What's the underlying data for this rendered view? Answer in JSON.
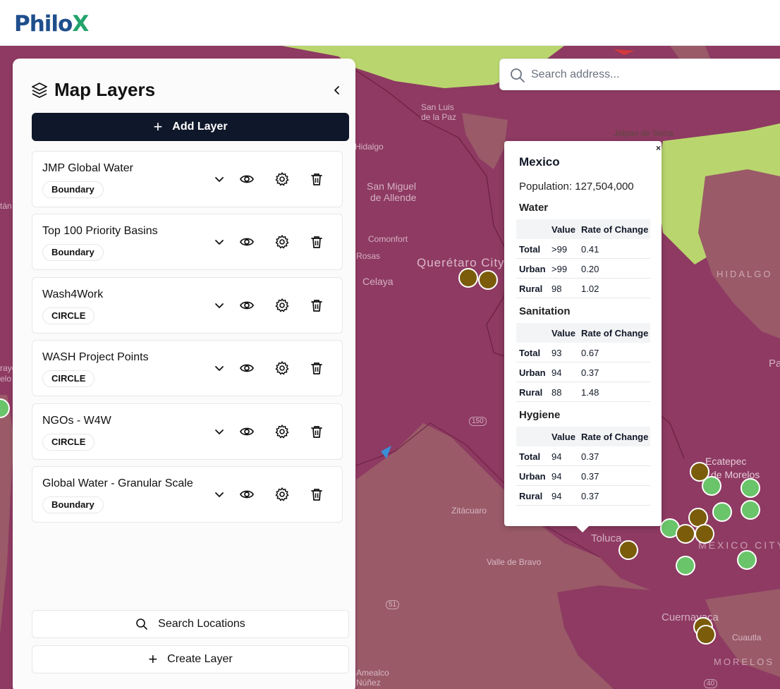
{
  "brand": {
    "logo_main": "Philo",
    "logo_accent": "X"
  },
  "search": {
    "placeholder": "Search address..."
  },
  "panel": {
    "title": "Map Layers",
    "add_layer_label": "Add Layer",
    "layers": [
      {
        "name": "JMP Global Water",
        "type": "Boundary"
      },
      {
        "name": "Top 100 Priority Basins",
        "type": "Boundary"
      },
      {
        "name": "Wash4Work",
        "type": "CIRCLE"
      },
      {
        "name": "WASH Project Points",
        "type": "CIRCLE"
      },
      {
        "name": "NGOs - W4W",
        "type": "CIRCLE"
      },
      {
        "name": "Global Water - Granular Scale",
        "type": "Boundary"
      }
    ],
    "search_locations_label": "Search Locations",
    "create_layer_label": "Create Layer"
  },
  "popup": {
    "close": "×",
    "title": "Mexico",
    "population": "Population: 127,504,000",
    "columns": [
      "",
      "Value",
      "Rate of Change"
    ],
    "sections": [
      {
        "name": "Water",
        "rows": [
          {
            "label": "Total",
            "value": ">99",
            "rate": "0.41"
          },
          {
            "label": "Urban",
            "value": ">99",
            "rate": "0.20"
          },
          {
            "label": "Rural",
            "value": "98",
            "rate": "1.02"
          }
        ]
      },
      {
        "name": "Sanitation",
        "rows": [
          {
            "label": "Total",
            "value": "93",
            "rate": "0.67"
          },
          {
            "label": "Urban",
            "value": "94",
            "rate": "0.37"
          },
          {
            "label": "Rural",
            "value": "88",
            "rate": "1.48"
          }
        ]
      },
      {
        "name": "Hygiene",
        "rows": [
          {
            "label": "Total",
            "value": "94",
            "rate": "0.37"
          },
          {
            "label": "Urban",
            "value": "94",
            "rate": "0.37"
          },
          {
            "label": "Rural",
            "value": "94",
            "rate": "0.37"
          }
        ]
      }
    ]
  },
  "map_labels": {
    "san_luis": "San Luis",
    "de_la_paz": "de la Paz",
    "hidalgo": "Hidalgo",
    "san_miguel": "San Miguel",
    "de_allende": "de Allende",
    "comonfort": "Comonfort",
    "queretaro": "Querétaro City",
    "celaya": "Celaya",
    "rosas": "Rosas",
    "jalpan": "Jalpan de Serra",
    "hidalgo_state": "HIDALGO",
    "ecatepec": "Ecatepec",
    "de_morelos": "de Morelos",
    "mexico_city": "MEXICO CITY",
    "zitacuaro": "Zitácuaro",
    "toluca": "Toluca",
    "valle_bravo": "Valle de Bravo",
    "cuernavaca": "Cuernavaca",
    "cuautla": "Cuautla",
    "morelos": "MORELOS",
    "amealco": "Amealco",
    "nunez": "Núñez",
    "tan": "tán",
    "rayo": "rayo",
    "elo": "elo",
    "pa": "Pa",
    "road_150": "150",
    "road_51": "51",
    "road_40": "40"
  },
  "colors": {
    "boundary_magenta": "#8e3a62",
    "boundary_mauve": "#9a5a68",
    "region_green": "#b9d66e",
    "point_brown": "#7a5c0a",
    "point_green": "#6ac46a",
    "button_dark": "#0f172a"
  }
}
